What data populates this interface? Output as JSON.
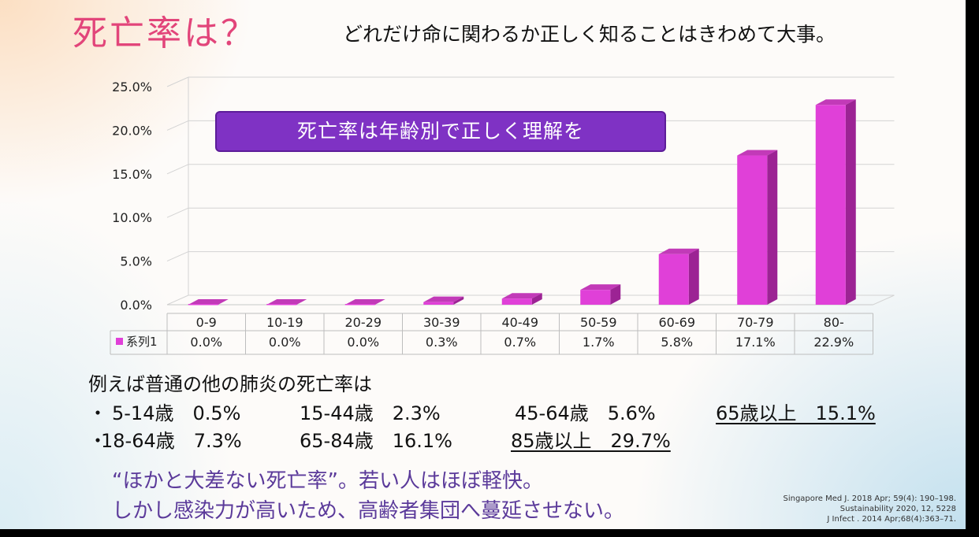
{
  "title": "死亡率は？",
  "subtitle": "どれだけ命に関わるか正しく知ることはきわめて大事。",
  "callout": "死亡率は年齢別で正しく理解を",
  "chart_data": {
    "type": "bar",
    "categories": [
      "0-9",
      "10-19",
      "20-29",
      "30-39",
      "40-49",
      "50-59",
      "60-69",
      "70-79",
      "80-"
    ],
    "series": [
      {
        "name": "系列1",
        "values": [
          0.0,
          0.0,
          0.0,
          0.3,
          0.7,
          1.7,
          5.8,
          17.1,
          22.9
        ]
      }
    ],
    "data_labels": [
      "0.0%",
      "0.0%",
      "0.0%",
      "0.3%",
      "0.7%",
      "1.7%",
      "5.8%",
      "17.1%",
      "22.9%"
    ],
    "y_ticks": [
      "0.0%",
      "5.0%",
      "10.0%",
      "15.0%",
      "20.0%",
      "25.0%"
    ],
    "ylim": [
      0,
      25
    ],
    "grid": true,
    "data_table": true,
    "bar_color": "#e040d8"
  },
  "notes": {
    "heading": "例えば普通の他の肺炎の死亡率は",
    "line1": {
      "bullet": "・",
      "g1": "5-14歳　0.5%",
      "g2": "15-44歳　2.3%",
      "g3": "45-64歳　5.6%",
      "g4": "65歳以上　15.1%"
    },
    "line2": {
      "bullet": "・",
      "g1": "18-64歳　7.3%",
      "g2": "65-84歳　16.1%",
      "g3": "85歳以上　29.7%"
    }
  },
  "message": {
    "line1": "“ほかと大差ない死亡率”。若い人はほぼ軽快。",
    "line2": "しかし感染力が高いため、高齢者集団へ蔓延させない。"
  },
  "citations": [
    "Singapore Med J. 2018 Apr; 59(4): 190–198.",
    "Sustainability 2020, 12, 5228",
    "J Infect . 2014 Apr;68(4):363–71."
  ]
}
